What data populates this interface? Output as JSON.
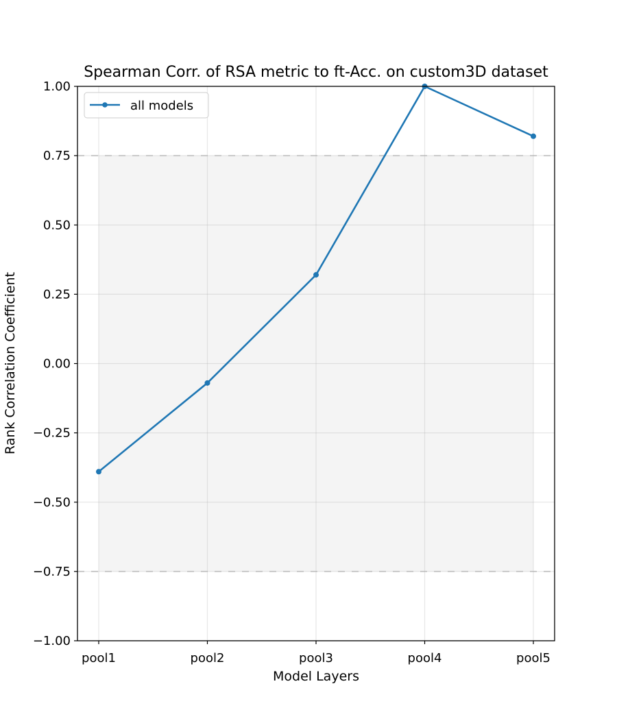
{
  "chart_data": {
    "type": "line",
    "title": "Spearman Corr. of RSA metric to ft-Acc. on custom3D dataset",
    "xlabel": "Model Layers",
    "ylabel": "Rank Correlation Coefficient",
    "categories": [
      "pool1",
      "pool2",
      "pool3",
      "pool4",
      "pool5"
    ],
    "series": [
      {
        "name": "all models",
        "values": [
          -0.39,
          -0.07,
          0.32,
          1.0,
          0.82
        ],
        "color": "#1f77b4"
      }
    ],
    "ylim": [
      -1.0,
      1.0
    ],
    "yticks": [
      -1.0,
      -0.75,
      -0.5,
      -0.25,
      0.0,
      0.25,
      0.5,
      0.75,
      1.0
    ],
    "ytick_labels": [
      "−1.00",
      "−0.75",
      "−0.50",
      "−0.25",
      "0.00",
      "0.25",
      "0.50",
      "0.75",
      "1.00"
    ],
    "shaded_band": {
      "from": -0.75,
      "to": 0.75,
      "color": "#f4f4f4",
      "edge_color": "#d0d0d0",
      "edge_style": "dashed"
    },
    "grid": true,
    "legend_position": "top-left"
  }
}
